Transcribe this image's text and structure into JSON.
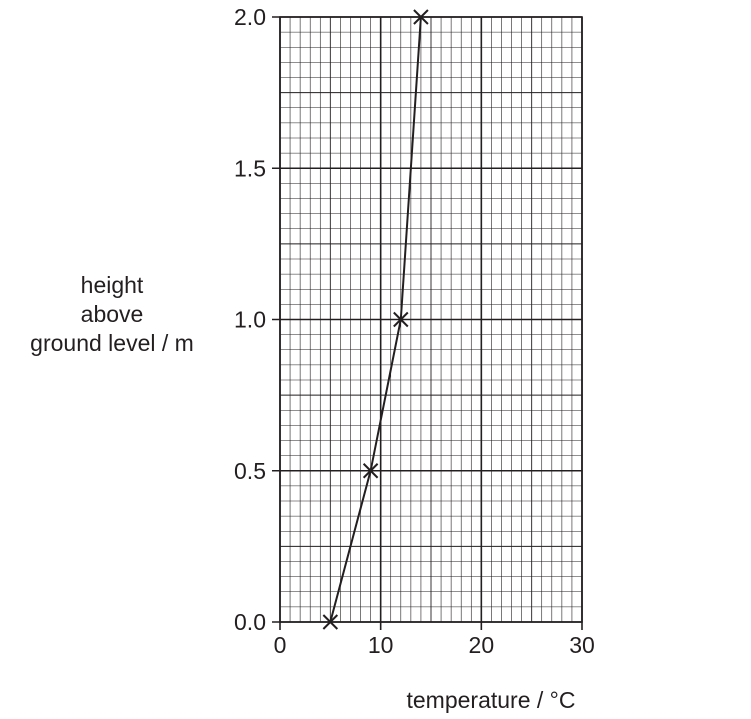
{
  "chart_data": {
    "type": "line",
    "title": "",
    "xlabel": "temperature / °C",
    "ylabel_lines": [
      "height",
      "above",
      "ground level / m"
    ],
    "xlim": [
      0,
      30
    ],
    "ylim": [
      0,
      2.0
    ],
    "x_ticks": [
      0,
      10,
      20,
      30
    ],
    "x_tick_labels": [
      "0",
      "10",
      "20",
      "30"
    ],
    "y_ticks": [
      0,
      0.5,
      1.0,
      1.5,
      2.0
    ],
    "y_tick_labels": [
      "0.0",
      "0.5",
      "1.0",
      "1.5",
      "2.0"
    ],
    "grid": "graph paper: fine grid every 1 °C and 0.05 m, bold lines every 10 °C and 0.5 m",
    "marker": "cross",
    "series": [
      {
        "x": [
          5,
          9,
          12,
          14
        ],
        "y": [
          0.0,
          0.5,
          1.0,
          2.0
        ]
      }
    ],
    "colors": {
      "line": "#231f20",
      "grid": "#231f20"
    }
  }
}
